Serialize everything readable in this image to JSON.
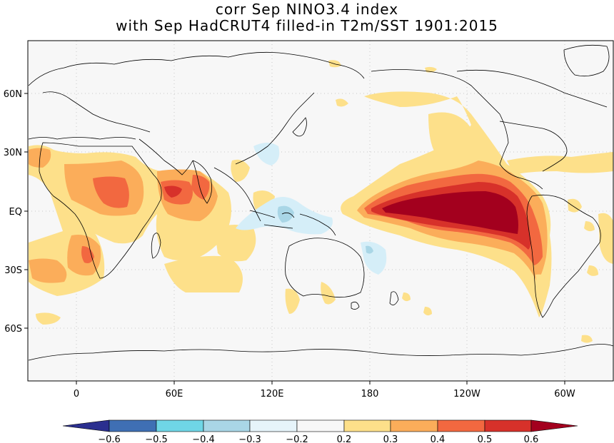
{
  "title": {
    "line1": "corr Sep NINO3.4 index",
    "line2": "with Sep HadCRUT4 filled-in T2m/SST 1901:2015"
  },
  "map": {
    "lat_ticks": [
      "60N",
      "30N",
      "EQ",
      "30S",
      "60S"
    ],
    "lon_ticks": [
      "0",
      "60E",
      "120E",
      "180",
      "120W",
      "60W"
    ]
  },
  "colorbar": {
    "labels": [
      "-0.6",
      "-0.5",
      "-0.4",
      "-0.3",
      "-0.2",
      "0.2",
      "0.3",
      "0.4",
      "0.5",
      "0.6"
    ],
    "colors": [
      "#2b2f8f",
      "#3f6fb4",
      "#6fd6e6",
      "#a9d6e6",
      "#e6f4fa",
      "#f7f7f7",
      "#fde08a",
      "#fbad5a",
      "#f26840",
      "#d7312a",
      "#a3001e"
    ]
  },
  "field_colors": {
    "ocean_bg": "#f7f7f7",
    "pos_1": "#fde08a",
    "pos_2": "#fbad5a",
    "pos_3": "#f26840",
    "pos_4": "#d7312a",
    "pos_5": "#a3001e",
    "neg_1": "#d5eef8",
    "neg_2": "#a9d6e6"
  }
}
